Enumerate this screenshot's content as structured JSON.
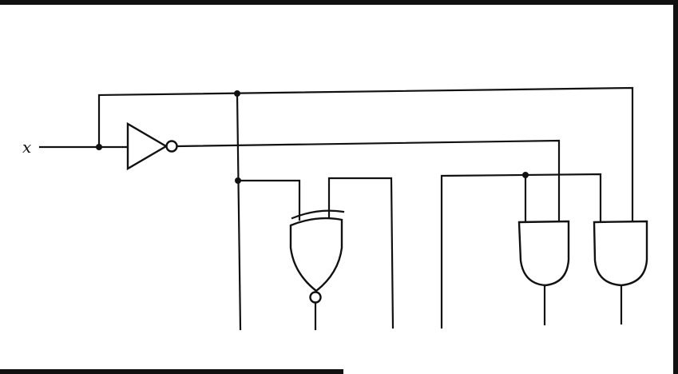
{
  "diagram": {
    "input_label": "x",
    "components": {
      "not_gate": "not-gate",
      "xnor_gate": "xnor-gate",
      "and_gates": [
        "and-gate-1",
        "and-gate-2"
      ]
    },
    "colors": {
      "ink": "#111111",
      "background": "#ffffff"
    }
  }
}
